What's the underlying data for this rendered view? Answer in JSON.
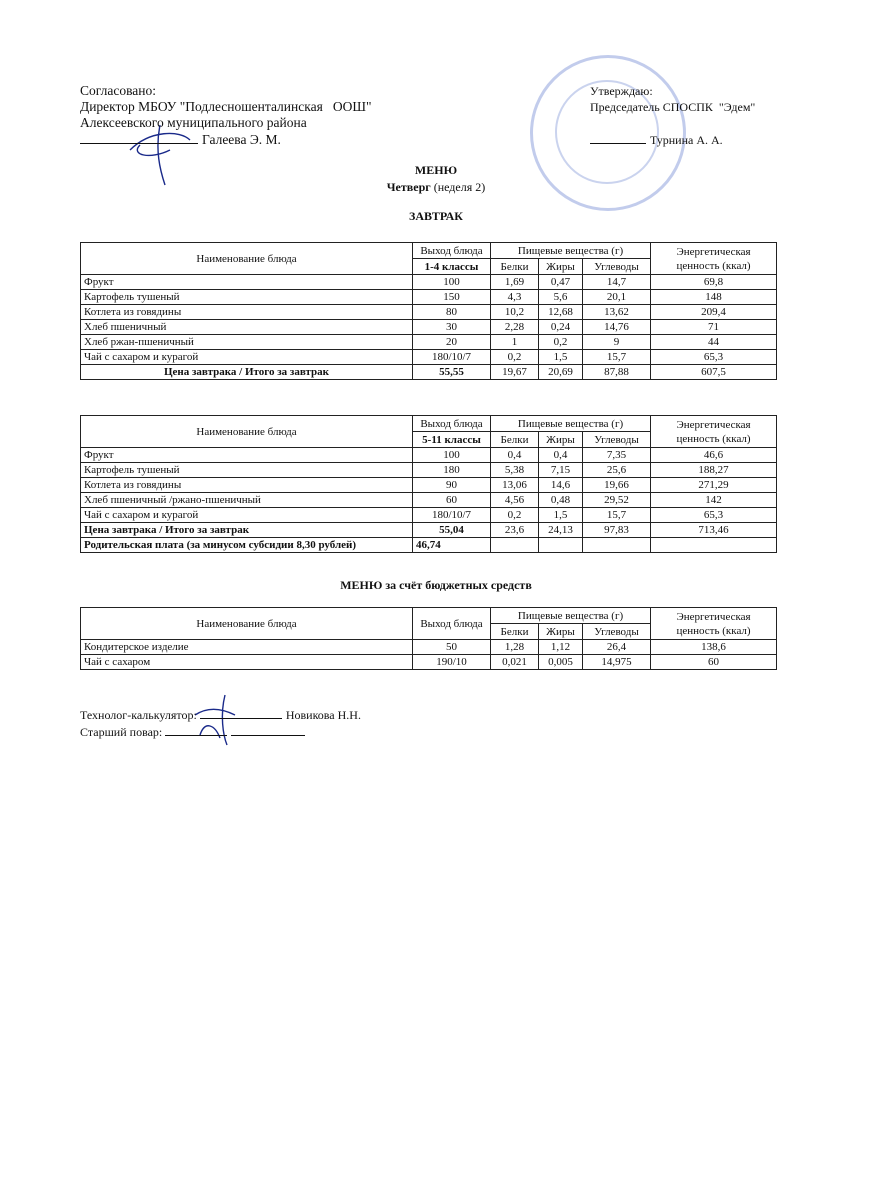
{
  "header": {
    "approved": {
      "label": "Согласовано:",
      "position": "Директор МБОУ \"Подлесношенталинская   ООШ\"",
      "district": "Алексеевского муниципального района",
      "name": "Галеева Э. М."
    },
    "confirmed": {
      "label": "Утверждаю:",
      "position": "Председатель СПОСПК  \"Эдем\"",
      "name": "Турнина А. А."
    }
  },
  "title": "МЕНЮ",
  "day": "Четверг",
  "week": "(неделя 2)",
  "section": "ЗАВТРАК",
  "tables": [
    {
      "header": {
        "name": "Наименование блюда",
        "output": "Выход блюда",
        "nutrients": "Пищевые вещества (г)",
        "energy": "Энергетическая ценность (ккал)",
        "classes": "1-4 классы",
        "proteins": "Белки",
        "fats": "Жиры",
        "carbs": "Углеводы"
      },
      "rows": [
        [
          "Фрукт",
          "100",
          "1,69",
          "0,47",
          "14,7",
          "69,8"
        ],
        [
          "Картофель тушеный",
          "150",
          "4,3",
          "5,6",
          "20,1",
          "148"
        ],
        [
          "Котлета из говядины",
          "80",
          "10,2",
          "12,68",
          "13,62",
          "209,4"
        ],
        [
          "Хлеб пшеничный",
          "30",
          "2,28",
          "0,24",
          "14,76",
          "71"
        ],
        [
          "Хлеб ржан-пшеничный",
          "20",
          "1",
          "0,2",
          "9",
          "44"
        ],
        [
          "Чай с сахаром и курагой",
          "180/10/7",
          "0,2",
          "1,5",
          "15,7",
          "65,3"
        ]
      ],
      "total": [
        "Цена завтрака / Итого за завтрак",
        "55,55",
        "19,67",
        "20,69",
        "87,88",
        "607,5"
      ]
    },
    {
      "header": {
        "name": "Наименование блюда",
        "output": "Выход блюда",
        "nutrients": "Пищевые вещества (г)",
        "energy": "Энергетическая ценность (ккал)",
        "classes": "5-11 классы",
        "proteins": "Белки",
        "fats": "Жиры",
        "carbs": "Углеводы"
      },
      "rows": [
        [
          "Фрукт",
          "100",
          "0,4",
          "0,4",
          "7,35",
          "46,6"
        ],
        [
          "Картофель тушеный",
          "180",
          "5,38",
          "7,15",
          "25,6",
          "188,27"
        ],
        [
          "Котлета из говядины",
          "90",
          "13,06",
          "14,6",
          "19,66",
          "271,29"
        ],
        [
          "Хлеб пшеничный /ржано-пшеничный",
          "60",
          "4,56",
          "0,48",
          "29,52",
          "142"
        ],
        [
          "Чай с сахаром и курагой",
          "180/10/7",
          "0,2",
          "1,5",
          "15,7",
          "65,3"
        ]
      ],
      "total": [
        "Цена завтрака / Итого за завтрак",
        "55,04",
        "23,6",
        "24,13",
        "97,83",
        "713,46"
      ],
      "parent_fee": [
        "Родительская плата (за минусом субсидии 8,30 рублей)",
        "46,74"
      ]
    },
    {
      "header": {
        "name": "Наименование блюда",
        "output": "Выход блюда",
        "nutrients": "Пищевые вещества (г)",
        "energy": "Энергетическая ценность (ккал)",
        "proteins": "Белки",
        "fats": "Жиры",
        "carbs": "Углеводы"
      },
      "rows": [
        [
          "Кондитерское изделие",
          "50",
          "1,28",
          "1,12",
          "26,4",
          "138,6"
        ],
        [
          "Чай с сахаром",
          "190/10",
          "0,021",
          "0,005",
          "14,975",
          "60"
        ]
      ]
    }
  ],
  "budget_section": "МЕНЮ за счёт бюджетных средств",
  "footer": {
    "technologist_label": "Технолог-калькулятор:",
    "technologist_name": "Новикова Н.Н.",
    "cook_label": "Старший повар:"
  }
}
